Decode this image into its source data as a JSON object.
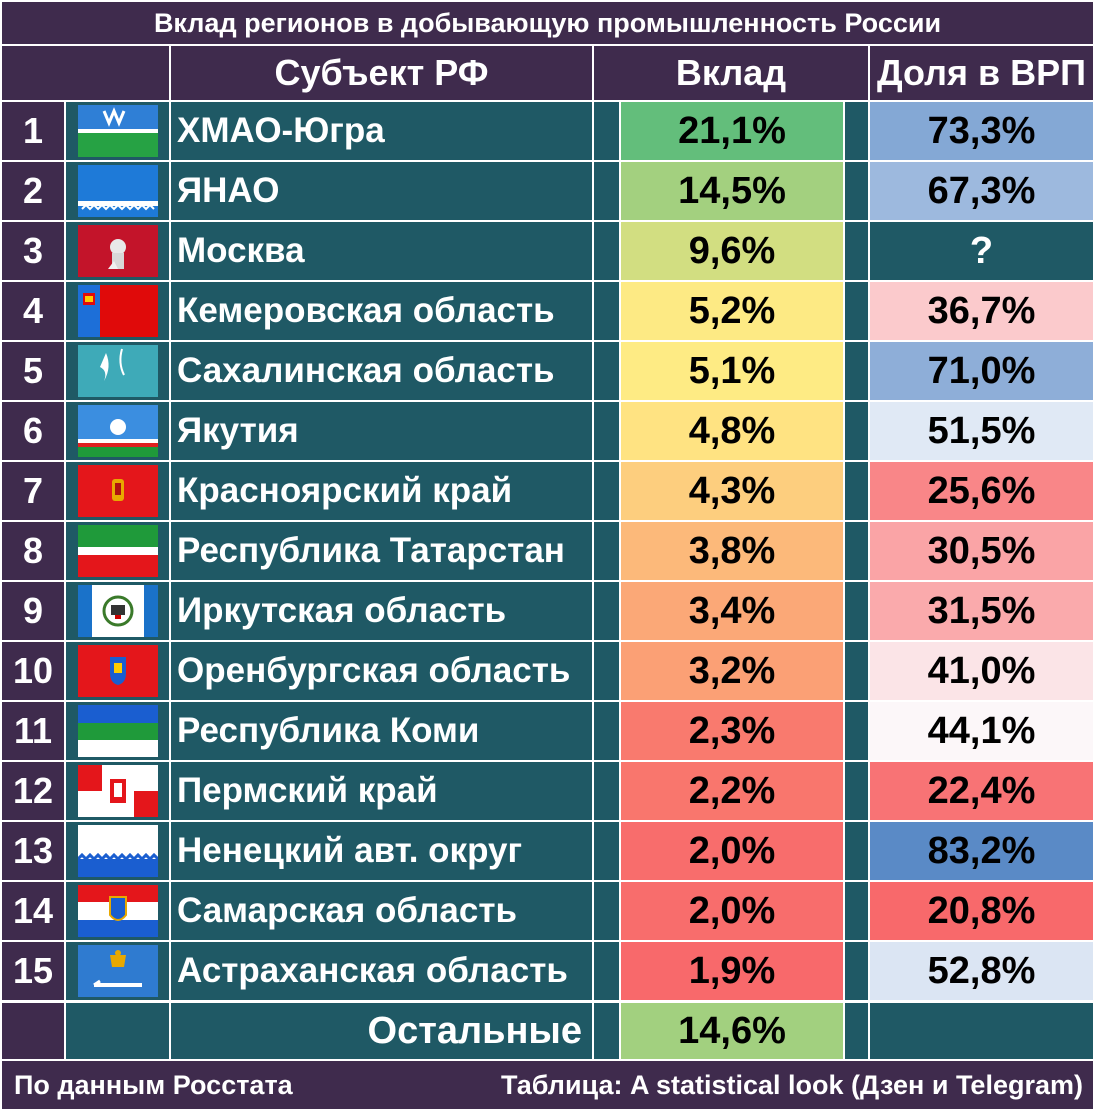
{
  "title": "Вклад регионов в добывающую промышленность России",
  "headers": {
    "subject": "Субъект РФ",
    "contribution": "Вклад",
    "grp_share": "Доля в ВРП"
  },
  "rows": [
    {
      "rank": "1",
      "name": "ХМАО-Югра",
      "contribution": "21,1%",
      "grp_share": "73,3%",
      "flag": "khmao-flag-icon"
    },
    {
      "rank": "2",
      "name": "ЯНАО",
      "contribution": "14,5%",
      "grp_share": "67,3%",
      "flag": "yanao-flag-icon"
    },
    {
      "rank": "3",
      "name": "Москва",
      "contribution": "9,6%",
      "grp_share": "?",
      "flag": "moscow-flag-icon"
    },
    {
      "rank": "4",
      "name": "Кемеровская область",
      "contribution": "5,2%",
      "grp_share": "36,7%",
      "flag": "kemerovo-flag-icon"
    },
    {
      "rank": "5",
      "name": "Сахалинская область",
      "contribution": "5,1%",
      "grp_share": "71,0%",
      "flag": "sakhalin-flag-icon"
    },
    {
      "rank": "6",
      "name": "Якутия",
      "contribution": "4,8%",
      "grp_share": "51,5%",
      "flag": "yakutia-flag-icon"
    },
    {
      "rank": "7",
      "name": "Красноярский край",
      "contribution": "4,3%",
      "grp_share": "25,6%",
      "flag": "krasnoyarsk-flag-icon"
    },
    {
      "rank": "8",
      "name": "Республика Татарстан",
      "contribution": "3,8%",
      "grp_share": "30,5%",
      "flag": "tatarstan-flag-icon"
    },
    {
      "rank": "9",
      "name": "Иркутская область",
      "contribution": "3,4%",
      "grp_share": "31,5%",
      "flag": "irkutsk-flag-icon"
    },
    {
      "rank": "10",
      "name": "Оренбургская область",
      "contribution": "3,2%",
      "grp_share": "41,0%",
      "flag": "orenburg-flag-icon"
    },
    {
      "rank": "11",
      "name": "Республика Коми",
      "contribution": "2,3%",
      "grp_share": "44,1%",
      "flag": "komi-flag-icon"
    },
    {
      "rank": "12",
      "name": "Пермский край",
      "contribution": "2,2%",
      "grp_share": "22,4%",
      "flag": "perm-flag-icon"
    },
    {
      "rank": "13",
      "name": "Ненецкий авт. округ",
      "contribution": "2,0%",
      "grp_share": "83,2%",
      "flag": "nenets-flag-icon"
    },
    {
      "rank": "14",
      "name": "Самарская область",
      "contribution": "2,0%",
      "grp_share": "20,8%",
      "flag": "samara-flag-icon"
    },
    {
      "rank": "15",
      "name": "Астраханская область",
      "contribution": "1,9%",
      "grp_share": "52,8%",
      "flag": "astrakhan-flag-icon"
    }
  ],
  "others": {
    "name": "Остальные",
    "contribution": "14,6%"
  },
  "footer": {
    "left": "По данным Росстата",
    "right": "Таблица: A statistical look (Дзен и Telegram)"
  },
  "colors": {
    "header_bg": "#3f2b4d",
    "row_bg": "#1f5965",
    "contribution_scale": [
      "#f8696b",
      "#ffeb84",
      "#63be7b"
    ],
    "grp_scale": [
      "#f8696b",
      "#fcfcff",
      "#5a8ac6"
    ]
  },
  "chart_data": {
    "type": "table",
    "title": "Вклад регионов в добывающую промышленность России",
    "columns": [
      "Субъект РФ",
      "Вклад",
      "Доля в ВРП"
    ],
    "categories": [
      "ХМАО-Югра",
      "ЯНАО",
      "Москва",
      "Кемеровская область",
      "Сахалинская область",
      "Якутия",
      "Красноярский край",
      "Республика Татарстан",
      "Иркутская область",
      "Оренбургская область",
      "Республика Коми",
      "Пермский край",
      "Ненецкий авт. округ",
      "Самарская область",
      "Астраханская область",
      "Остальные"
    ],
    "series": [
      {
        "name": "Вклад",
        "values": [
          21.1,
          14.5,
          9.6,
          5.2,
          5.1,
          4.8,
          4.3,
          3.8,
          3.4,
          3.2,
          2.3,
          2.2,
          2.0,
          2.0,
          1.9,
          14.6
        ]
      },
      {
        "name": "Доля в ВРП",
        "values": [
          73.3,
          67.3,
          null,
          36.7,
          71.0,
          51.5,
          25.6,
          30.5,
          31.5,
          41.0,
          44.1,
          22.4,
          83.2,
          20.8,
          52.8,
          null
        ]
      }
    ]
  }
}
